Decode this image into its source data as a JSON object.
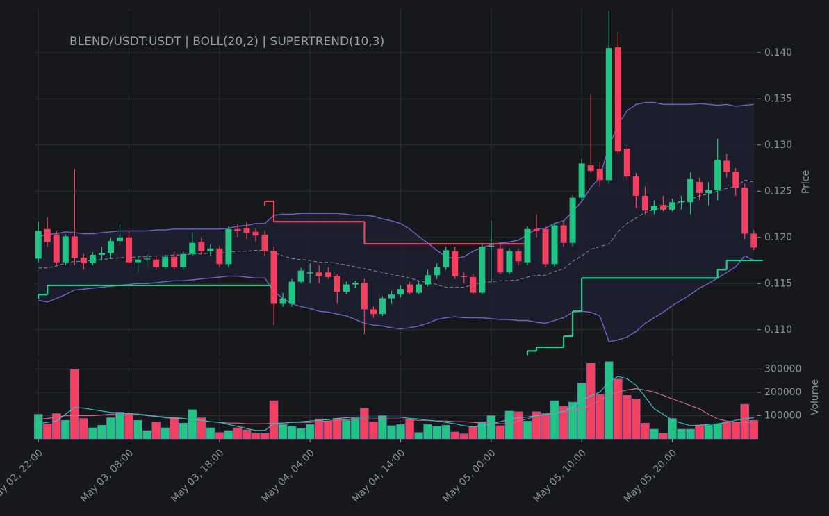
{
  "chart_data": {
    "type": "candlestick",
    "title": "BLEND/USDT:USDT | BOLL(20,2) | SUPERTREND(10,3)",
    "y_label": "Price",
    "xlim": [
      -0.4,
      79.4
    ],
    "xticks": [
      {
        "value": 0,
        "label": "May 02, 22:00"
      },
      {
        "value": 10,
        "label": "May 03, 08:00"
      },
      {
        "value": 20,
        "label": "May 03, 18:00"
      },
      {
        "value": 30,
        "label": "May 04, 04:00"
      },
      {
        "value": 40,
        "label": "May 04, 14:00"
      },
      {
        "value": 50,
        "label": "May 05, 00:00"
      },
      {
        "value": 60,
        "label": "May 05, 10:00"
      },
      {
        "value": 70,
        "label": "May 05, 20:00"
      }
    ],
    "ylim": [
      0.1072,
      0.1448
    ],
    "yticks": [
      {
        "value": 0.11,
        "label": "0.110"
      },
      0.115,
      {
        "value": 0.12,
        "label": "0.120"
      },
      0.125,
      {
        "value": 0.13,
        "label": "0.130"
      },
      0.135,
      {
        "value": 0.14,
        "label": "0.140"
      }
    ],
    "grid": true,
    "up_color": "#22c483",
    "down_color": "#f2415e",
    "open": [
      0.1177,
      0.1209,
      0.1203,
      0.1173,
      0.1201,
      0.1178,
      0.1172,
      0.1181,
      0.1183,
      0.1196,
      0.12,
      0.1173,
      0.1176,
      0.1176,
      0.1168,
      0.1179,
      0.1168,
      0.1182,
      0.1195,
      0.1185,
      0.1188,
      0.1171,
      0.1209,
      0.121,
      0.1206,
      0.1203,
      0.1185,
      0.1128,
      0.1128,
      0.1152,
      0.1161,
      0.1162,
      0.1162,
      0.1158,
      0.1141,
      0.1149,
      0.1151,
      0.1122,
      0.1117,
      0.1134,
      0.1138,
      0.1149,
      0.114,
      0.1149,
      0.1159,
      0.1168,
      0.1185,
      0.1158,
      0.1157,
      0.114,
      0.119,
      0.1188,
      0.1162,
      0.1185,
      0.1173,
      0.1209,
      0.1209,
      0.1171,
      0.1213,
      0.1194,
      0.1243,
      0.1278,
      0.1274,
      0.1262,
      0.1406,
      0.1296,
      0.1266,
      0.1245,
      0.1229,
      0.1235,
      0.123,
      0.1238,
      0.1238,
      0.126,
      0.1248,
      0.1251,
      0.1283,
      0.1271,
      0.1254,
      0.1204
    ],
    "high": [
      0.1217,
      0.1222,
      0.1207,
      0.1203,
      0.1274,
      0.1182,
      0.1184,
      0.119,
      0.12,
      0.1214,
      0.1207,
      0.118,
      0.1182,
      0.118,
      0.1181,
      0.1185,
      0.1185,
      0.1205,
      0.12,
      0.1192,
      0.1191,
      0.1212,
      0.1215,
      0.1217,
      0.121,
      0.1207,
      0.119,
      0.114,
      0.1155,
      0.1167,
      0.1172,
      0.117,
      0.1168,
      0.116,
      0.1152,
      0.1153,
      0.1155,
      0.1125,
      0.1136,
      0.1142,
      0.1148,
      0.1152,
      0.1153,
      0.1165,
      0.1172,
      0.119,
      0.119,
      0.1162,
      0.116,
      0.1193,
      0.1218,
      0.1193,
      0.1188,
      0.1188,
      0.1212,
      0.1225,
      0.1212,
      0.1216,
      0.1218,
      0.1246,
      0.1285,
      0.1355,
      0.1282,
      0.1445,
      0.1422,
      0.13,
      0.127,
      0.1255,
      0.124,
      0.1245,
      0.1242,
      0.1245,
      0.127,
      0.1265,
      0.126,
      0.1307,
      0.129,
      0.1275,
      0.1258,
      0.1208
    ],
    "low": [
      0.1173,
      0.119,
      0.117,
      0.117,
      0.117,
      0.1165,
      0.117,
      0.1175,
      0.1178,
      0.1192,
      0.117,
      0.1162,
      0.1168,
      0.1165,
      0.1165,
      0.1165,
      0.1165,
      0.118,
      0.1182,
      0.118,
      0.1168,
      0.1168,
      0.12,
      0.1198,
      0.1195,
      0.118,
      0.1105,
      0.1125,
      0.1125,
      0.115,
      0.115,
      0.115,
      0.1155,
      0.1128,
      0.1138,
      0.1145,
      0.1095,
      0.1113,
      0.1115,
      0.1128,
      0.1135,
      0.1138,
      0.1138,
      0.1147,
      0.1155,
      0.1165,
      0.1155,
      0.115,
      0.1138,
      0.1138,
      0.115,
      0.116,
      0.116,
      0.117,
      0.117,
      0.12,
      0.1168,
      0.1168,
      0.119,
      0.119,
      0.124,
      0.127,
      0.1255,
      0.1258,
      0.129,
      0.1262,
      0.1232,
      0.1225,
      0.1225,
      0.1228,
      0.1228,
      0.123,
      0.1225,
      0.124,
      0.1235,
      0.124,
      0.1265,
      0.1245,
      0.1198,
      0.1186
    ],
    "close": [
      0.1207,
      0.1195,
      0.1173,
      0.1201,
      0.1178,
      0.1172,
      0.1181,
      0.1183,
      0.1196,
      0.12,
      0.1173,
      0.1176,
      0.1177,
      0.1168,
      0.1179,
      0.1168,
      0.1182,
      0.1194,
      0.1185,
      0.1188,
      0.1171,
      0.1209,
      0.1207,
      0.1205,
      0.1202,
      0.1185,
      0.1128,
      0.1134,
      0.1152,
      0.1164,
      0.1162,
      0.1158,
      0.1157,
      0.1141,
      0.1149,
      0.1151,
      0.1122,
      0.1117,
      0.1134,
      0.1138,
      0.1144,
      0.114,
      0.1149,
      0.1159,
      0.1168,
      0.1186,
      0.1158,
      0.1157,
      0.114,
      0.119,
      0.1191,
      0.1162,
      0.1185,
      0.1174,
      0.1209,
      0.1207,
      0.1171,
      0.1213,
      0.1194,
      0.1243,
      0.128,
      0.1272,
      0.1262,
      0.1405,
      0.1293,
      0.1266,
      0.1245,
      0.1229,
      0.1234,
      0.123,
      0.1238,
      0.1239,
      0.1263,
      0.1248,
      0.1251,
      0.1284,
      0.1271,
      0.1254,
      0.1204,
      0.1189
    ],
    "band_color": "#7263c9",
    "band_fill": "#1f2030",
    "middle_color": "#8a8d96",
    "bb_upper": [
      0.1201,
      0.1203,
      0.1204,
      0.1206,
      0.1205,
      0.1204,
      0.1204,
      0.1205,
      0.1206,
      0.1207,
      0.1207,
      0.1207,
      0.1207,
      0.1208,
      0.1208,
      0.1209,
      0.1209,
      0.1209,
      0.1209,
      0.1209,
      0.1209,
      0.121,
      0.1212,
      0.1213,
      0.1215,
      0.1215,
      0.1224,
      0.1225,
      0.1225,
      0.1226,
      0.1226,
      0.1226,
      0.1226,
      0.1226,
      0.1225,
      0.1224,
      0.1224,
      0.1223,
      0.122,
      0.1218,
      0.1215,
      0.1209,
      0.1201,
      0.1194,
      0.1186,
      0.1179,
      0.1177,
      0.1179,
      0.1185,
      0.1189,
      0.1192,
      0.1194,
      0.1195,
      0.1197,
      0.1203,
      0.1209,
      0.121,
      0.1215,
      0.1218,
      0.1228,
      0.1239,
      0.1254,
      0.1265,
      0.1299,
      0.1322,
      0.1337,
      0.1344,
      0.1346,
      0.1346,
      0.1344,
      0.1344,
      0.1344,
      0.1344,
      0.1345,
      0.1344,
      0.1343,
      0.1344,
      0.1342,
      0.1343,
      0.1344
    ],
    "bb_middle": [
      0.1167,
      0.1167,
      0.1169,
      0.1172,
      0.1174,
      0.1174,
      0.1175,
      0.1176,
      0.1177,
      0.1178,
      0.1178,
      0.1179,
      0.1179,
      0.118,
      0.118,
      0.1181,
      0.1181,
      0.1182,
      0.1182,
      0.1183,
      0.1183,
      0.1184,
      0.1185,
      0.1185,
      0.1186,
      0.1186,
      0.1183,
      0.118,
      0.1177,
      0.1176,
      0.1175,
      0.1173,
      0.1173,
      0.1172,
      0.117,
      0.1168,
      0.1166,
      0.1164,
      0.1162,
      0.116,
      0.1158,
      0.1156,
      0.1153,
      0.1151,
      0.1149,
      0.1146,
      0.1146,
      0.1146,
      0.1149,
      0.1151,
      0.1152,
      0.1153,
      0.1153,
      0.1154,
      0.1157,
      0.1159,
      0.1159,
      0.1163,
      0.1166,
      0.1174,
      0.118,
      0.1187,
      0.119,
      0.1193,
      0.1206,
      0.1215,
      0.1221,
      0.1227,
      0.123,
      0.1232,
      0.1235,
      0.1238,
      0.1241,
      0.1245,
      0.1247,
      0.125,
      0.1253,
      0.1255,
      0.1262,
      0.126
    ],
    "bb_lower": [
      0.1132,
      0.113,
      0.1134,
      0.1138,
      0.1143,
      0.1144,
      0.1145,
      0.1146,
      0.1147,
      0.1148,
      0.1149,
      0.115,
      0.115,
      0.1151,
      0.1152,
      0.1153,
      0.1153,
      0.1154,
      0.1155,
      0.1156,
      0.1157,
      0.1158,
      0.1158,
      0.1157,
      0.1156,
      0.1156,
      0.1141,
      0.1134,
      0.1128,
      0.1125,
      0.1123,
      0.112,
      0.1119,
      0.1117,
      0.1115,
      0.1111,
      0.1107,
      0.1105,
      0.1104,
      0.1102,
      0.1101,
      0.1102,
      0.1104,
      0.1107,
      0.1111,
      0.1113,
      0.1114,
      0.1113,
      0.1113,
      0.1113,
      0.1112,
      0.1111,
      0.1111,
      0.111,
      0.111,
      0.1108,
      0.1107,
      0.111,
      0.1113,
      0.1119,
      0.112,
      0.1119,
      0.1115,
      0.1087,
      0.1089,
      0.1092,
      0.1098,
      0.1107,
      0.1113,
      0.1119,
      0.1126,
      0.1132,
      0.1138,
      0.1145,
      0.115,
      0.1156,
      0.1162,
      0.1168,
      0.118,
      0.1175
    ],
    "supertrend_up_color": "#1fcf88",
    "supertrend_down_color": "#f2415e",
    "supertrend_up": [
      0.1138,
      0.1148,
      0.1148,
      0.1148,
      0.1148,
      0.1148,
      0.1148,
      0.1148,
      0.1148,
      0.1148,
      0.1148,
      0.1148,
      0.1148,
      0.1148,
      0.1148,
      0.1148,
      0.1148,
      0.1148,
      0.1148,
      0.1148,
      0.1148,
      0.1148,
      0.1148,
      0.1148,
      0.1148,
      0.1148,
      null,
      null,
      null,
      null,
      null,
      null,
      null,
      null,
      null,
      null,
      null,
      null,
      null,
      null,
      null,
      null,
      null,
      null,
      null,
      null,
      null,
      null,
      null,
      null,
      null,
      null,
      null,
      null,
      0.1077,
      0.1081,
      0.1081,
      0.1081,
      0.1093,
      0.112,
      0.1156,
      0.1156,
      0.1156,
      0.1156,
      0.1156,
      0.1156,
      0.1156,
      0.1156,
      0.1156,
      0.1156,
      0.1156,
      0.1156,
      0.1156,
      0.1156,
      0.1156,
      0.1165,
      0.1175,
      0.1175,
      0.1175,
      0.1175
    ],
    "supertrend_down": [
      null,
      null,
      null,
      null,
      null,
      null,
      null,
      null,
      null,
      null,
      null,
      null,
      null,
      null,
      null,
      null,
      null,
      null,
      null,
      null,
      null,
      null,
      null,
      null,
      null,
      0.1239,
      0.1217,
      0.1217,
      0.1217,
      0.1217,
      0.1217,
      0.1217,
      0.1217,
      0.1217,
      0.1217,
      0.1217,
      0.1193,
      0.1193,
      0.1193,
      0.1193,
      0.1193,
      0.1193,
      0.1193,
      0.1193,
      0.1193,
      0.1193,
      0.1193,
      0.1193,
      0.1193,
      0.1193,
      0.1193,
      0.1193,
      0.1193,
      0.1193,
      null,
      null,
      null,
      null,
      null,
      null,
      null,
      null,
      null,
      null,
      null,
      null,
      null,
      null,
      null,
      null,
      null,
      null,
      null,
      null,
      null,
      null,
      null,
      null,
      null,
      null
    ],
    "volume": {
      "label": "Volume",
      "ylim": [
        0,
        340000
      ],
      "yticks": [
        100000,
        200000,
        300000
      ],
      "values": [
        106000,
        65000,
        109000,
        80000,
        300000,
        88000,
        48000,
        59000,
        91000,
        115000,
        109000,
        80000,
        36000,
        71000,
        48000,
        91000,
        68000,
        126000,
        91000,
        48000,
        28000,
        36000,
        48000,
        39000,
        25000,
        25000,
        164000,
        62000,
        54000,
        45000,
        62000,
        86000,
        77000,
        88000,
        80000,
        91000,
        132000,
        74000,
        100000,
        57000,
        62000,
        83000,
        28000,
        62000,
        54000,
        59000,
        30000,
        22000,
        51000,
        74000,
        100000,
        57000,
        120000,
        117000,
        77000,
        117000,
        109000,
        164000,
        141000,
        158000,
        239000,
        326000,
        190000,
        332000,
        257000,
        187000,
        172000,
        68000,
        42000,
        25000,
        88000,
        42000,
        42000,
        59000,
        59000,
        65000,
        74000,
        71000,
        149000,
        80000
      ],
      "ma_fast_color": "#2ec4c4",
      "ma_fast": [
        65000,
        71000,
        77000,
        106000,
        135000,
        132000,
        126000,
        120000,
        114000,
        112000,
        109000,
        106000,
        103000,
        97000,
        94000,
        91000,
        88000,
        83000,
        80000,
        74000,
        71000,
        62000,
        54000,
        45000,
        36000,
        36000,
        65000,
        68000,
        71000,
        74000,
        77000,
        80000,
        83000,
        88000,
        91000,
        94000,
        94000,
        94000,
        94000,
        94000,
        94000,
        88000,
        86000,
        80000,
        77000,
        71000,
        65000,
        57000,
        51000,
        57000,
        65000,
        74000,
        83000,
        91000,
        94000,
        100000,
        103000,
        109000,
        120000,
        135000,
        167000,
        184000,
        201000,
        245000,
        268000,
        259000,
        230000,
        181000,
        129000,
        106000,
        80000,
        68000,
        57000,
        59000,
        62000,
        65000,
        71000,
        80000,
        86000,
        91000
      ],
      "ma_slow_color": "#d0668a",
      "ma_slow": [
        83000,
        88000,
        94000,
        100000,
        100000,
        100000,
        100000,
        103000,
        106000,
        109000,
        109000,
        106000,
        100000,
        97000,
        91000,
        88000,
        86000,
        83000,
        80000,
        74000,
        71000,
        68000,
        68000,
        65000,
        65000,
        65000,
        68000,
        68000,
        71000,
        71000,
        71000,
        74000,
        77000,
        80000,
        83000,
        86000,
        86000,
        86000,
        86000,
        86000,
        86000,
        83000,
        80000,
        80000,
        77000,
        77000,
        74000,
        74000,
        71000,
        68000,
        68000,
        65000,
        65000,
        77000,
        86000,
        100000,
        106000,
        112000,
        117000,
        123000,
        129000,
        146000,
        164000,
        187000,
        201000,
        210000,
        216000,
        210000,
        201000,
        187000,
        172000,
        158000,
        143000,
        129000,
        106000,
        86000,
        77000,
        71000,
        71000,
        71000
      ]
    }
  }
}
